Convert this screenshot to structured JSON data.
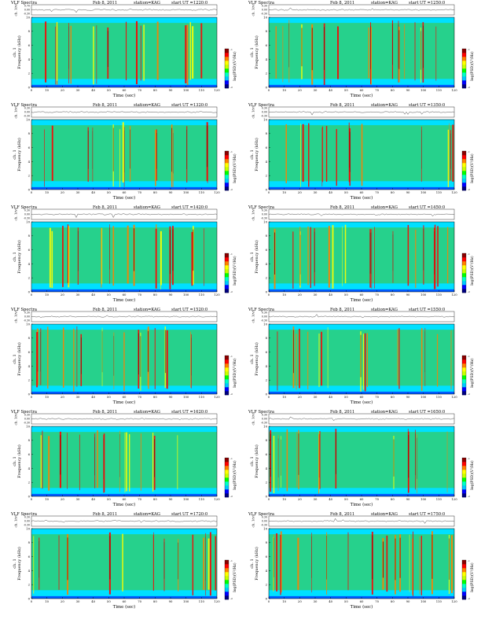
{
  "page": {
    "colormap": [
      "#000080",
      "#0000ff",
      "#00c8ff",
      "#00ffc8",
      "#00ff00",
      "#c8ff00",
      "#ffff00",
      "#ff8000",
      "#ff0000",
      "#8b0000"
    ],
    "background_color": "#00e0ff",
    "band_color": "#33cc66"
  },
  "chart_data": [
    {
      "type": "heatmap",
      "title_left": "VLF Spectra",
      "date": "Feb 8, 2011",
      "station": "station=KAG",
      "start": "start UT =1220:0",
      "top_ylabel": "ch. 1(V)",
      "top_yticks": [
        "0.70",
        "0.00",
        "-0.30"
      ],
      "ylabel": "ch. 1\nFrequency (kHz)",
      "xlabel": "Time (sec)",
      "xlim": [
        0,
        120
      ],
      "ylim": [
        0,
        10
      ],
      "xticks": [
        0,
        10,
        20,
        30,
        40,
        50,
        60,
        70,
        80,
        90,
        100,
        110,
        120
      ],
      "yticks": [
        0,
        2,
        4,
        6,
        8,
        10
      ],
      "colorbar_label": "log(PSD)(V²/Hz)",
      "colorbar_ticks": [
        "-1",
        "-2"
      ]
    },
    {
      "type": "heatmap",
      "title_left": "VLF Spectra",
      "date": "Feb 8, 2011",
      "station": "station=KAG",
      "start": "start UT =1250:0",
      "top_ylabel": "ch. 1(V)",
      "top_yticks": [
        "0.30",
        "0.00",
        "-0.30"
      ],
      "ylabel": "ch. 1\nFrequency (kHz)",
      "xlabel": "Time (sec)",
      "xlim": [
        0,
        120
      ],
      "ylim": [
        0,
        10
      ],
      "xticks": [
        0,
        10,
        20,
        30,
        40,
        50,
        60,
        70,
        80,
        90,
        100,
        110,
        120
      ],
      "yticks": [
        0,
        2,
        4,
        6,
        8,
        10
      ],
      "colorbar_label": "log(PSD)(V²/Hz)",
      "colorbar_ticks": [
        "-1",
        "-2"
      ]
    },
    {
      "type": "heatmap",
      "title_left": "VLF Spectra",
      "date": "Feb 8, 2011",
      "station": "station=KAG",
      "start": "start UT =1320:0",
      "top_ylabel": "ch. 1(V)",
      "top_yticks": [
        "0.30",
        "0.00",
        "-0.30"
      ],
      "ylabel": "ch. 1\nFrequency (kHz)",
      "xlabel": "Time (sec)",
      "xlim": [
        0,
        120
      ],
      "ylim": [
        0,
        10
      ],
      "xticks": [
        0,
        10,
        20,
        30,
        40,
        50,
        60,
        70,
        80,
        90,
        100,
        110,
        120
      ],
      "yticks": [
        0,
        2,
        4,
        6,
        8,
        10
      ],
      "colorbar_label": "log(PSD)(V²/Hz)",
      "colorbar_ticks": [
        "-1",
        "-2"
      ]
    },
    {
      "type": "heatmap",
      "title_left": "VLF Spectra",
      "date": "Feb 8, 2011",
      "station": "station=KAG",
      "start": "start UT =1350:0",
      "top_ylabel": "ch. 1(V)",
      "top_yticks": [
        "0.30",
        "0.00",
        "-0.30"
      ],
      "ylabel": "ch. 1\nFrequency (kHz)",
      "xlabel": "Time (sec)",
      "xlim": [
        0,
        120
      ],
      "ylim": [
        0,
        10
      ],
      "xticks": [
        0,
        10,
        20,
        30,
        40,
        50,
        60,
        70,
        80,
        90,
        100,
        110,
        120
      ],
      "yticks": [
        0,
        2,
        4,
        6,
        8,
        10
      ],
      "colorbar_label": "log(PSD)(V²/Hz)",
      "colorbar_ticks": [
        "-1",
        "-2"
      ]
    },
    {
      "type": "heatmap",
      "title_left": "VLF Spectra",
      "date": "Feb 8, 2011",
      "station": "station=KAG",
      "start": "start UT =1420:0",
      "top_ylabel": "ch. 1(V)",
      "top_yticks": [
        "0.30",
        "0.00",
        "-0.30"
      ],
      "ylabel": "ch. 1\nFrequency (kHz)",
      "xlabel": "Time (sec)",
      "xlim": [
        0,
        120
      ],
      "ylim": [
        0,
        10
      ],
      "xticks": [
        0,
        10,
        20,
        30,
        40,
        50,
        60,
        70,
        80,
        90,
        100,
        110,
        120
      ],
      "yticks": [
        0,
        2,
        4,
        6,
        8,
        10
      ],
      "colorbar_label": "log(PSD)(V²/Hz)",
      "colorbar_ticks": [
        "-1",
        "-2"
      ]
    },
    {
      "type": "heatmap",
      "title_left": "VLF Spectra",
      "date": "Feb 8, 2011",
      "station": "station=KAG",
      "start": "start UT =1450:0",
      "top_ylabel": "ch. 1(V)",
      "top_yticks": [
        "0.30",
        "0.00",
        "-0.30"
      ],
      "ylabel": "ch. 1\nFrequency (kHz)",
      "xlabel": "Time (sec)",
      "xlim": [
        0,
        120
      ],
      "ylim": [
        0,
        10
      ],
      "xticks": [
        0,
        10,
        20,
        30,
        40,
        50,
        60,
        70,
        80,
        90,
        100,
        110,
        120
      ],
      "yticks": [
        0,
        2,
        4,
        6,
        8,
        10
      ],
      "colorbar_label": "log(PSD)(V²/Hz)",
      "colorbar_ticks": [
        "-1",
        "-2"
      ]
    },
    {
      "type": "heatmap",
      "title_left": "VLF Spectra",
      "date": "Feb 8, 2011",
      "station": "station=KAG",
      "start": "start UT =1520:0",
      "top_ylabel": "ch. 1(V)",
      "top_yticks": [
        "0.30",
        "0.00",
        "-0.30"
      ],
      "ylabel": "ch. 1\nFrequency (kHz)",
      "xlabel": "Time (sec)",
      "xlim": [
        0,
        120
      ],
      "ylim": [
        0,
        10
      ],
      "xticks": [
        0,
        10,
        20,
        30,
        40,
        50,
        60,
        70,
        80,
        90,
        100,
        110,
        120
      ],
      "yticks": [
        0,
        2,
        4,
        6,
        8,
        10
      ],
      "colorbar_label": "log(PSD)(V²/Hz)",
      "colorbar_ticks": [
        "-1",
        "-2"
      ]
    },
    {
      "type": "heatmap",
      "title_left": "VLF Spectra",
      "date": "Feb 8, 2011",
      "station": "station=KAG",
      "start": "start UT =1550:0",
      "top_ylabel": "ch. 1(V)",
      "top_yticks": [
        "0.30",
        "0.00",
        "-0.30"
      ],
      "ylabel": "ch. 1\nFrequency (kHz)",
      "xlabel": "Time (sec)",
      "xlim": [
        0,
        120
      ],
      "ylim": [
        0,
        10
      ],
      "xticks": [
        0,
        10,
        20,
        30,
        40,
        50,
        60,
        70,
        80,
        90,
        100,
        110,
        120
      ],
      "yticks": [
        0,
        2,
        4,
        6,
        8,
        10
      ],
      "colorbar_label": "log(PSD)(V²/Hz)",
      "colorbar_ticks": [
        "-1",
        "-2"
      ]
    },
    {
      "type": "heatmap",
      "title_left": "VLF Spectra",
      "date": "Feb 8, 2011",
      "station": "station=KAG",
      "start": "start UT =1620:0",
      "top_ylabel": "ch. 1(V)",
      "top_yticks": [
        "0.30",
        "0.00",
        "-0.30"
      ],
      "ylabel": "ch. 1\nFrequency (kHz)",
      "xlabel": "Time (sec)",
      "xlim": [
        0,
        120
      ],
      "ylim": [
        0,
        10
      ],
      "xticks": [
        0,
        10,
        20,
        30,
        40,
        50,
        60,
        70,
        80,
        90,
        100,
        110,
        120
      ],
      "yticks": [
        0,
        2,
        4,
        6,
        8,
        10
      ],
      "colorbar_label": "log(PSD)(V²/Hz)",
      "colorbar_ticks": [
        "-1",
        "-2"
      ]
    },
    {
      "type": "heatmap",
      "title_left": "VLF Spectra",
      "date": "Feb 8, 2011",
      "station": "station=KAG",
      "start": "start UT =1650:0",
      "top_ylabel": "ch. 1(V)",
      "top_yticks": [
        "0.30",
        "0.00",
        "-0.30"
      ],
      "ylabel": "ch. 1\nFrequency (kHz)",
      "xlabel": "Time (sec)",
      "xlim": [
        0,
        120
      ],
      "ylim": [
        0,
        10
      ],
      "xticks": [
        0,
        10,
        20,
        30,
        40,
        50,
        60,
        70,
        80,
        90,
        100,
        110,
        120
      ],
      "yticks": [
        0,
        2,
        4,
        6,
        8,
        10
      ],
      "colorbar_label": "log(PSD)(V²/Hz)",
      "colorbar_ticks": [
        "-1",
        "-2"
      ]
    },
    {
      "type": "heatmap",
      "title_left": "VLF Spectra",
      "date": "Feb 8, 2011",
      "station": "station=KAG",
      "start": "start UT =1720:0",
      "top_ylabel": "ch. 1(V)",
      "top_yticks": [
        "0.30",
        "0.00",
        "-0.30"
      ],
      "ylabel": "ch. 1\nFrequency (kHz)",
      "xlabel": "Time (sec)",
      "xlim": [
        0,
        120
      ],
      "ylim": [
        0,
        10
      ],
      "xticks": [
        0,
        10,
        20,
        30,
        40,
        50,
        60,
        70,
        80,
        90,
        100,
        110,
        120
      ],
      "yticks": [
        0,
        2,
        4,
        6,
        8,
        10
      ],
      "colorbar_label": "log(PSD)(V²/Hz)",
      "colorbar_ticks": [
        "-1",
        "-2"
      ]
    },
    {
      "type": "heatmap",
      "title_left": "VLF Spectra",
      "date": "Feb 8, 2011",
      "station": "station=KAG",
      "start": "start UT =1750:0",
      "top_ylabel": "ch. 1(V)",
      "top_yticks": [
        "0.30",
        "0.00",
        "-0.30"
      ],
      "ylabel": "ch. 1\nFrequency (kHz)",
      "xlabel": "Time (sec)",
      "xlim": [
        0,
        120
      ],
      "ylim": [
        0,
        10
      ],
      "xticks": [
        0,
        10,
        20,
        30,
        40,
        50,
        60,
        70,
        80,
        90,
        100,
        110,
        120
      ],
      "yticks": [
        0,
        2,
        4,
        6,
        8,
        10
      ],
      "colorbar_label": "log(PSD)(V²/Hz)",
      "colorbar_ticks": [
        "-1",
        "-2"
      ]
    }
  ]
}
